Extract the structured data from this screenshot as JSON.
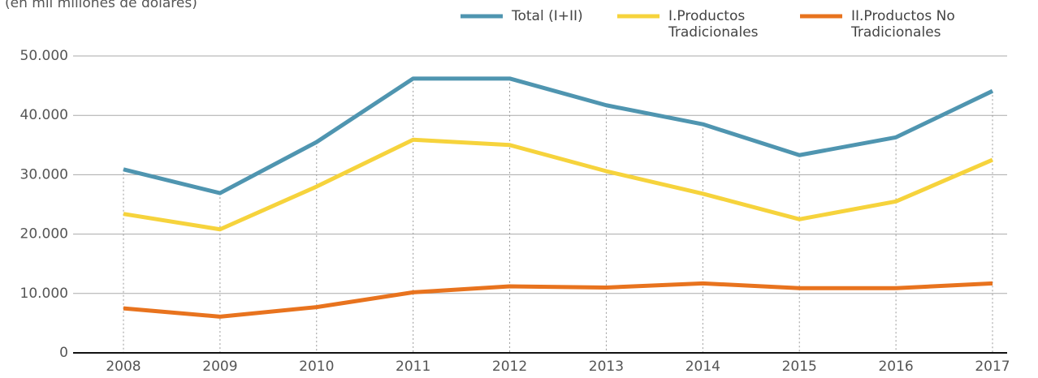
{
  "chart_data": {
    "type": "line",
    "subtitle": "(en mil millones de dólares)",
    "categories": [
      "2008",
      "2009",
      "2010",
      "2011",
      "2012",
      "2013",
      "2014",
      "2015",
      "2016",
      "2017"
    ],
    "series": [
      {
        "name": "Total (I+II)",
        "color": "#4f95b0",
        "values": [
          30900,
          26900,
          35500,
          46200,
          46200,
          41700,
          38500,
          33300,
          36300,
          44100
        ]
      },
      {
        "name": "I.Productos Tradicionales",
        "color": "#f6d33c",
        "values": [
          23400,
          20800,
          28000,
          35900,
          35000,
          30600,
          26800,
          22500,
          25500,
          32500
        ]
      },
      {
        "name": "II.Productos No Tradicionales",
        "color": "#e8731e",
        "values": [
          7500,
          6100,
          7700,
          10200,
          11200,
          11000,
          11700,
          10900,
          10900,
          11700
        ]
      }
    ],
    "ylim": [
      0,
      50000
    ],
    "yticks": [
      0,
      {
        "value": 10000,
        "label": "10.000"
      },
      {
        "value": 20000,
        "label": "20.000"
      },
      {
        "value": 30000,
        "label": "30.000"
      },
      {
        "value": 40000,
        "label": "40.000"
      },
      {
        "value": 50000,
        "label": "50.000"
      }
    ],
    "grid": true,
    "legend": "top-right"
  }
}
